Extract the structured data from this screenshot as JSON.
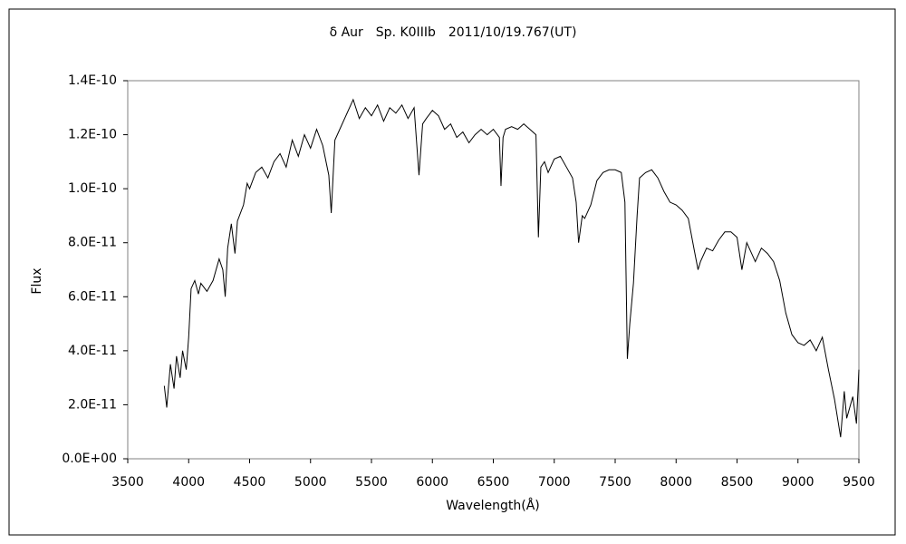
{
  "chart_data": {
    "type": "line",
    "title": "δ Aur　Sp. K0IIIb　2011/10/19.767(UT)",
    "x_label": "Wavelength(Å)",
    "y_label": "Flux",
    "grid": false,
    "xlim": [
      3500,
      9500
    ],
    "xticks": [
      3500,
      4000,
      4500,
      5000,
      5500,
      6000,
      6500,
      7000,
      7500,
      8000,
      8500,
      9000,
      9500
    ],
    "ylim": [
      0,
      1.4e-10
    ],
    "yticks": [
      {
        "value": 0,
        "label": "0.0E+00"
      },
      {
        "value": 2e-11,
        "label": "2.0E-11"
      },
      {
        "value": 4e-11,
        "label": "4.0E-11"
      },
      {
        "value": 6e-11,
        "label": "6.0E-11"
      },
      {
        "value": 8e-11,
        "label": "8.0E-11"
      },
      {
        "value": 1e-10,
        "label": "1.0E-10"
      },
      {
        "value": 1.2e-10,
        "label": "1.2E-10"
      },
      {
        "value": 1.4e-10,
        "label": "1.4E-10"
      }
    ],
    "x": [
      3800,
      3820,
      3850,
      3880,
      3900,
      3930,
      3950,
      3980,
      4000,
      4020,
      4050,
      4080,
      4100,
      4150,
      4200,
      4250,
      4280,
      4300,
      4320,
      4350,
      4380,
      4400,
      4450,
      4480,
      4500,
      4550,
      4600,
      4650,
      4700,
      4750,
      4800,
      4850,
      4900,
      4950,
      5000,
      5050,
      5100,
      5150,
      5170,
      5200,
      5250,
      5300,
      5350,
      5400,
      5450,
      5500,
      5550,
      5600,
      5650,
      5700,
      5750,
      5800,
      5850,
      5890,
      5920,
      5950,
      6000,
      6050,
      6100,
      6150,
      6200,
      6250,
      6300,
      6350,
      6400,
      6450,
      6500,
      6550,
      6563,
      6580,
      6600,
      6650,
      6700,
      6750,
      6800,
      6850,
      6870,
      6890,
      6920,
      6950,
      7000,
      7050,
      7100,
      7150,
      7180,
      7200,
      7230,
      7250,
      7300,
      7350,
      7400,
      7450,
      7500,
      7550,
      7580,
      7600,
      7620,
      7650,
      7680,
      7700,
      7750,
      7800,
      7850,
      7900,
      7950,
      8000,
      8050,
      8100,
      8150,
      8180,
      8200,
      8250,
      8300,
      8350,
      8400,
      8450,
      8500,
      8540,
      8580,
      8600,
      8650,
      8700,
      8750,
      8800,
      8850,
      8900,
      8950,
      9000,
      9050,
      9100,
      9150,
      9200,
      9250,
      9300,
      9350,
      9380,
      9400,
      9450,
      9480,
      9500
    ],
    "series": [
      {
        "color": "#000000",
        "values": [
          2.7e-11,
          1.9e-11,
          3.5e-11,
          2.6e-11,
          3.8e-11,
          3e-11,
          4e-11,
          3.3e-11,
          4.5e-11,
          6.3e-11,
          6.6e-11,
          6.1e-11,
          6.5e-11,
          6.2e-11,
          6.6e-11,
          7.4e-11,
          7e-11,
          6e-11,
          7.8e-11,
          8.7e-11,
          7.6e-11,
          8.8e-11,
          9.4e-11,
          1.02e-10,
          1e-10,
          1.06e-10,
          1.08e-10,
          1.04e-10,
          1.1e-10,
          1.13e-10,
          1.08e-10,
          1.18e-10,
          1.12e-10,
          1.2e-10,
          1.15e-10,
          1.22e-10,
          1.16e-10,
          1.05e-10,
          9.1e-11,
          1.18e-10,
          1.23e-10,
          1.28e-10,
          1.33e-10,
          1.26e-10,
          1.3e-10,
          1.27e-10,
          1.31e-10,
          1.25e-10,
          1.3e-10,
          1.28e-10,
          1.31e-10,
          1.26e-10,
          1.3e-10,
          1.05e-10,
          1.24e-10,
          1.26e-10,
          1.29e-10,
          1.27e-10,
          1.22e-10,
          1.24e-10,
          1.19e-10,
          1.21e-10,
          1.17e-10,
          1.2e-10,
          1.22e-10,
          1.2e-10,
          1.22e-10,
          1.19e-10,
          1.01e-10,
          1.19e-10,
          1.22e-10,
          1.23e-10,
          1.22e-10,
          1.24e-10,
          1.22e-10,
          1.2e-10,
          8.2e-11,
          1.08e-10,
          1.1e-10,
          1.06e-10,
          1.11e-10,
          1.12e-10,
          1.08e-10,
          1.04e-10,
          9.5e-11,
          8e-11,
          9e-11,
          8.9e-11,
          9.4e-11,
          1.03e-10,
          1.06e-10,
          1.07e-10,
          1.07e-10,
          1.06e-10,
          9.5e-11,
          3.7e-11,
          5e-11,
          6.5e-11,
          9e-11,
          1.04e-10,
          1.06e-10,
          1.07e-10,
          1.04e-10,
          9.9e-11,
          9.5e-11,
          9.4e-11,
          9.2e-11,
          8.9e-11,
          7.7e-11,
          7e-11,
          7.3e-11,
          7.8e-11,
          7.7e-11,
          8.1e-11,
          8.4e-11,
          8.4e-11,
          8.2e-11,
          7e-11,
          8e-11,
          7.8e-11,
          7.3e-11,
          7.8e-11,
          7.6e-11,
          7.3e-11,
          6.6e-11,
          5.4e-11,
          4.6e-11,
          4.3e-11,
          4.2e-11,
          4.4e-11,
          4e-11,
          4.5e-11,
          3.3e-11,
          2.2e-11,
          8e-12,
          2.5e-11,
          1.5e-11,
          2.3e-11,
          1.3e-11,
          3.3e-11
        ]
      }
    ]
  }
}
